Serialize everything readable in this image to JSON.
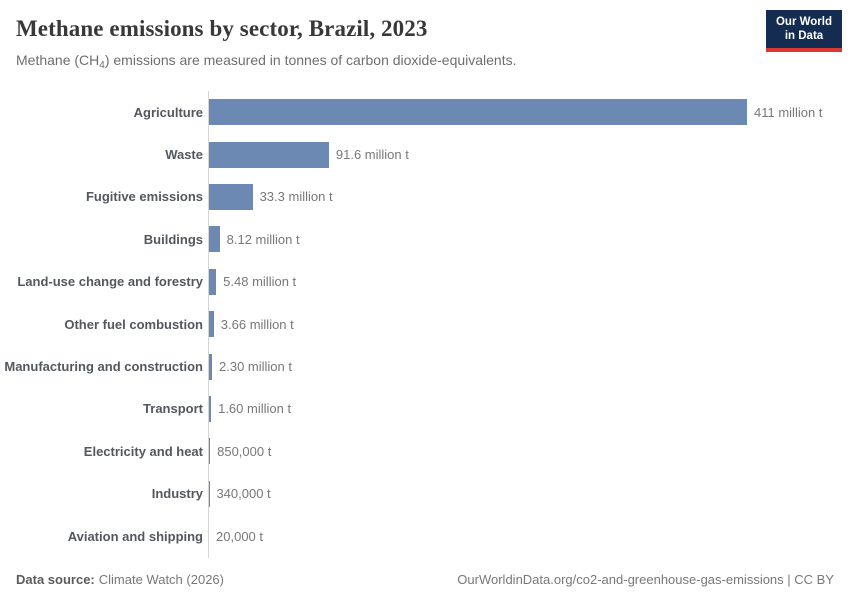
{
  "header": {
    "title": "Methane emissions by sector, Brazil, 2023",
    "subtitle_pre": "Methane (CH",
    "subtitle_sub": "4",
    "subtitle_post": ") emissions are measured in tonnes of carbon dioxide-equivalents."
  },
  "logo": {
    "line1": "Our World",
    "line2": "in Data",
    "bg_color": "#142c52",
    "accent_color": "#dc3932",
    "text_color": "#ffffff"
  },
  "chart_data": {
    "type": "bar",
    "orientation": "horizontal",
    "title": "Methane emissions by sector, Brazil, 2023",
    "xlabel": "",
    "ylabel": "",
    "unit": "tonnes of carbon dioxide-equivalents",
    "xlim_million_t": [
      0,
      411
    ],
    "grid": false,
    "bar_color": "#6c89b3",
    "categories": [
      "Agriculture",
      "Waste",
      "Fugitive emissions",
      "Buildings",
      "Land-use change and forestry",
      "Other fuel combustion",
      "Manufacturing and construction",
      "Transport",
      "Electricity and heat",
      "Industry",
      "Aviation and shipping"
    ],
    "values_million_t": [
      411,
      91.6,
      33.3,
      8.12,
      5.48,
      3.66,
      2.3,
      1.6,
      0.85,
      0.34,
      0.02
    ],
    "value_labels": [
      "411 million t",
      "91.6 million t",
      "33.3 million t",
      "8.12 million t",
      "5.48 million t",
      "3.66 million t",
      "2.30 million t",
      "1.60 million t",
      "850,000 t",
      "340,000 t",
      "20,000 t"
    ]
  },
  "footer": {
    "source_label": "Data source:",
    "source_value": "Climate Watch (2026)",
    "attribution": "OurWorldinData.org/co2-and-greenhouse-gas-emissions | CC BY"
  }
}
